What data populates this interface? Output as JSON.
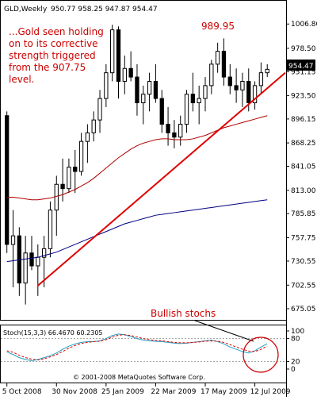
{
  "header": {
    "symbol": "GLD,Weekly",
    "ohlc": "950.77 958.25 947.87 954.47"
  },
  "commentary": [
    "...Gold seen holding",
    "on to its corrective",
    "strength triggered",
    "from the 907.75",
    "level."
  ],
  "annotations": {
    "peak_label": "989.95",
    "stoch_note": "Bullish stochs",
    "copyright": "© 2001-2008 MetaQuotes Software Corp."
  },
  "current_price_label": "954.47",
  "colors": {
    "up_fill": "#ffffff",
    "candle_outline": "#000000",
    "trendline": "#e00000",
    "ma_fast": "#b00000",
    "ma_slow": "#000080",
    "stoch_main": "#20a0c0",
    "stoch_signal": "#e00000",
    "annotation_text": "#cc0000"
  },
  "chart_data": [
    {
      "type": "candlestick",
      "title": "GLD,Weekly",
      "ylim": [
        675.05,
        1015.35
      ],
      "y_ticks": [
        1006.8,
        978.5,
        951.15,
        923.5,
        896.15,
        868.25,
        841.05,
        813.0,
        785.85,
        757.75,
        730.55,
        702.55,
        675.05
      ],
      "x_tick_labels": [
        "5 Oct 2008",
        "30 Nov 2008",
        "25 Jan 2009",
        "22 Mar 2009",
        "17 May 2009",
        "12 Jul 2009"
      ],
      "x_tick_index": [
        0,
        8,
        16,
        24,
        32,
        40
      ],
      "ohlc": [
        [
          900,
          905,
          740,
          750
        ],
        [
          750,
          790,
          700,
          760
        ],
        [
          760,
          770,
          690,
          705
        ],
        [
          705,
          760,
          680,
          740
        ],
        [
          740,
          760,
          720,
          725
        ],
        [
          725,
          750,
          690,
          735
        ],
        [
          735,
          760,
          700,
          745
        ],
        [
          745,
          800,
          735,
          790
        ],
        [
          790,
          830,
          760,
          820
        ],
        [
          820,
          850,
          800,
          815
        ],
        [
          815,
          850,
          810,
          840
        ],
        [
          840,
          860,
          810,
          835
        ],
        [
          835,
          880,
          830,
          870
        ],
        [
          870,
          890,
          845,
          880
        ],
        [
          880,
          905,
          870,
          895
        ],
        [
          895,
          930,
          880,
          920
        ],
        [
          920,
          960,
          910,
          950
        ],
        [
          950,
          1006,
          940,
          1000
        ],
        [
          1000,
          1004,
          920,
          940
        ],
        [
          940,
          970,
          925,
          955
        ],
        [
          955,
          975,
          940,
          945
        ],
        [
          945,
          960,
          900,
          915
        ],
        [
          915,
          935,
          890,
          925
        ],
        [
          925,
          950,
          905,
          940
        ],
        [
          940,
          960,
          915,
          920
        ],
        [
          920,
          930,
          880,
          890
        ],
        [
          890,
          910,
          865,
          880
        ],
        [
          880,
          895,
          862,
          875
        ],
        [
          875,
          900,
          865,
          890
        ],
        [
          890,
          930,
          880,
          925
        ],
        [
          925,
          950,
          905,
          915
        ],
        [
          915,
          935,
          890,
          920
        ],
        [
          920,
          945,
          905,
          935
        ],
        [
          935,
          965,
          925,
          960
        ],
        [
          960,
          985,
          950,
          975
        ],
        [
          975,
          990,
          935,
          945
        ],
        [
          945,
          960,
          925,
          935
        ],
        [
          935,
          955,
          915,
          930
        ],
        [
          930,
          950,
          910,
          940
        ],
        [
          940,
          955,
          905,
          915
        ],
        [
          915,
          940,
          907,
          935
        ],
        [
          935,
          962,
          925,
          950
        ],
        [
          950,
          960,
          945,
          954
        ]
      ],
      "series": [
        {
          "name": "",
          "values": [
            805,
            805,
            804,
            803,
            802,
            802,
            803,
            804,
            806,
            808,
            811,
            814,
            818,
            822,
            827,
            833,
            839,
            845,
            851,
            856,
            861,
            865,
            868,
            870,
            872,
            873,
            873,
            872,
            872,
            872,
            873,
            875,
            877,
            880,
            883,
            886,
            888,
            890,
            892,
            894,
            896,
            898,
            900
          ]
        },
        {
          "name": "",
          "values": [
            730,
            731,
            732,
            733,
            734,
            735,
            737,
            739,
            741,
            744,
            747,
            750,
            753,
            756,
            759,
            762,
            765,
            768,
            771,
            774,
            776,
            778,
            780,
            782,
            784,
            785,
            786,
            787,
            788,
            789,
            790,
            791,
            792,
            793,
            794,
            795,
            796,
            797,
            798,
            799,
            800,
            801,
            802
          ]
        }
      ],
      "trendline": {
        "from": [
          5,
          702
        ],
        "to": [
          45,
          950
        ]
      }
    },
    {
      "type": "line",
      "title": "Stoch(15,3,3) 66.4670 60.2305",
      "ylim": [
        0,
        100
      ],
      "y_ticks": [
        100,
        80,
        20,
        0
      ],
      "series": [
        {
          "name": "Stoch(15,3,3)",
          "values": [
            45,
            38,
            30,
            25,
            22,
            25,
            30,
            35,
            42,
            52,
            60,
            66,
            70,
            72,
            72,
            74,
            80,
            88,
            92,
            90,
            85,
            80,
            76,
            74,
            73,
            72,
            70,
            68,
            67,
            68,
            70,
            72,
            74,
            76,
            72,
            66,
            58,
            52,
            46,
            42,
            48,
            58,
            66.467
          ]
        },
        {
          "name": "",
          "values": [
            48,
            44,
            36,
            30,
            26,
            24,
            27,
            32,
            38,
            46,
            55,
            62,
            67,
            70,
            72,
            73,
            77,
            84,
            89,
            90,
            88,
            84,
            80,
            77,
            75,
            74,
            72,
            70,
            69,
            69,
            70,
            71,
            73,
            74,
            73,
            70,
            64,
            58,
            52,
            47,
            46,
            52,
            60.2305
          ]
        }
      ]
    }
  ]
}
